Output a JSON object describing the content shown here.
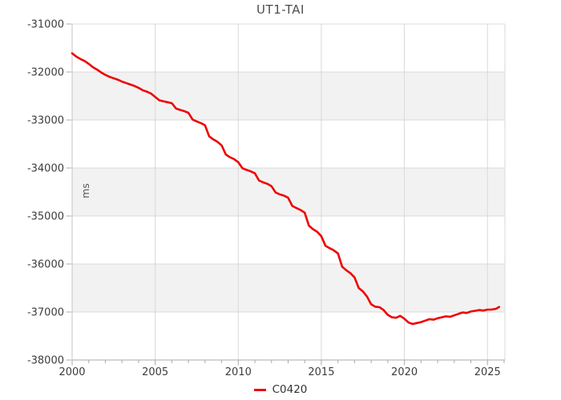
{
  "title": "UT1-TAI",
  "legend": {
    "series_label": "C0420"
  },
  "y_axis": {
    "unit_label": "ms",
    "ticks": [
      -31000,
      -32000,
      -33000,
      -34000,
      -35000,
      -36000,
      -37000,
      -38000
    ]
  },
  "x_axis": {
    "major_ticks": [
      2000,
      2005,
      2010,
      2015,
      2020,
      2025
    ],
    "minor_tick_step_years": 1,
    "range": [
      2000,
      2026.05
    ]
  },
  "colors": {
    "series": "#ee0000",
    "band": "#f2f2f2",
    "grid": "#d9d9d9",
    "axis": "#aaaaaa",
    "tick_text": "#3d3d3d",
    "title_text": "#4d4d4d"
  },
  "chart_data": {
    "type": "line",
    "title": "UT1-TAI",
    "xlabel": "",
    "ylabel": "ms",
    "xlim": [
      2000,
      2026.05
    ],
    "ylim": [
      -38000,
      -31000
    ],
    "grid": true,
    "legend_position": "bottom",
    "alternating_bands": [
      [
        -32000,
        -33000
      ],
      [
        -34000,
        -35000
      ],
      [
        -36000,
        -37000
      ]
    ],
    "series": [
      {
        "name": "C0420",
        "color": "#ee0000",
        "points": [
          [
            2000.0,
            -31610
          ],
          [
            2000.25,
            -31680
          ],
          [
            2000.5,
            -31730
          ],
          [
            2000.75,
            -31770
          ],
          [
            2001.0,
            -31830
          ],
          [
            2001.25,
            -31900
          ],
          [
            2001.5,
            -31950
          ],
          [
            2001.75,
            -32010
          ],
          [
            2002.0,
            -32060
          ],
          [
            2002.25,
            -32100
          ],
          [
            2002.5,
            -32130
          ],
          [
            2002.75,
            -32160
          ],
          [
            2003.0,
            -32200
          ],
          [
            2003.25,
            -32230
          ],
          [
            2003.5,
            -32260
          ],
          [
            2003.75,
            -32290
          ],
          [
            2004.0,
            -32330
          ],
          [
            2004.25,
            -32380
          ],
          [
            2004.5,
            -32410
          ],
          [
            2004.75,
            -32450
          ],
          [
            2005.0,
            -32520
          ],
          [
            2005.25,
            -32590
          ],
          [
            2005.5,
            -32610
          ],
          [
            2005.75,
            -32630
          ],
          [
            2006.0,
            -32650
          ],
          [
            2006.25,
            -32760
          ],
          [
            2006.5,
            -32790
          ],
          [
            2006.75,
            -32815
          ],
          [
            2007.0,
            -32850
          ],
          [
            2007.25,
            -32990
          ],
          [
            2007.5,
            -33030
          ],
          [
            2007.75,
            -33065
          ],
          [
            2008.0,
            -33110
          ],
          [
            2008.25,
            -33340
          ],
          [
            2008.5,
            -33405
          ],
          [
            2008.75,
            -33455
          ],
          [
            2009.0,
            -33530
          ],
          [
            2009.25,
            -33720
          ],
          [
            2009.5,
            -33775
          ],
          [
            2009.75,
            -33815
          ],
          [
            2010.0,
            -33880
          ],
          [
            2010.25,
            -34005
          ],
          [
            2010.5,
            -34040
          ],
          [
            2010.75,
            -34070
          ],
          [
            2011.0,
            -34110
          ],
          [
            2011.25,
            -34260
          ],
          [
            2011.5,
            -34300
          ],
          [
            2011.75,
            -34330
          ],
          [
            2012.0,
            -34380
          ],
          [
            2012.25,
            -34510
          ],
          [
            2012.5,
            -34550
          ],
          [
            2012.75,
            -34575
          ],
          [
            2013.0,
            -34620
          ],
          [
            2013.25,
            -34790
          ],
          [
            2013.5,
            -34835
          ],
          [
            2013.75,
            -34875
          ],
          [
            2014.0,
            -34930
          ],
          [
            2014.25,
            -35200
          ],
          [
            2014.5,
            -35275
          ],
          [
            2014.75,
            -35330
          ],
          [
            2015.0,
            -35420
          ],
          [
            2015.25,
            -35620
          ],
          [
            2015.5,
            -35670
          ],
          [
            2015.75,
            -35715
          ],
          [
            2016.0,
            -35780
          ],
          [
            2016.25,
            -36055
          ],
          [
            2016.5,
            -36130
          ],
          [
            2016.75,
            -36190
          ],
          [
            2017.0,
            -36280
          ],
          [
            2017.25,
            -36500
          ],
          [
            2017.5,
            -36570
          ],
          [
            2017.75,
            -36680
          ],
          [
            2018.0,
            -36840
          ],
          [
            2018.25,
            -36890
          ],
          [
            2018.5,
            -36900
          ],
          [
            2018.75,
            -36960
          ],
          [
            2019.0,
            -37060
          ],
          [
            2019.25,
            -37110
          ],
          [
            2019.5,
            -37120
          ],
          [
            2019.75,
            -37080
          ],
          [
            2020.0,
            -37140
          ],
          [
            2020.25,
            -37220
          ],
          [
            2020.5,
            -37250
          ],
          [
            2020.75,
            -37230
          ],
          [
            2021.0,
            -37210
          ],
          [
            2021.25,
            -37180
          ],
          [
            2021.5,
            -37150
          ],
          [
            2021.75,
            -37160
          ],
          [
            2022.0,
            -37130
          ],
          [
            2022.25,
            -37110
          ],
          [
            2022.5,
            -37090
          ],
          [
            2022.75,
            -37100
          ],
          [
            2023.0,
            -37070
          ],
          [
            2023.25,
            -37040
          ],
          [
            2023.5,
            -37010
          ],
          [
            2023.75,
            -37020
          ],
          [
            2024.0,
            -36990
          ],
          [
            2024.25,
            -36975
          ],
          [
            2024.5,
            -36960
          ],
          [
            2024.75,
            -36970
          ],
          [
            2025.0,
            -36950
          ],
          [
            2025.25,
            -36948
          ],
          [
            2025.5,
            -36935
          ],
          [
            2025.7,
            -36895
          ]
        ]
      }
    ]
  }
}
